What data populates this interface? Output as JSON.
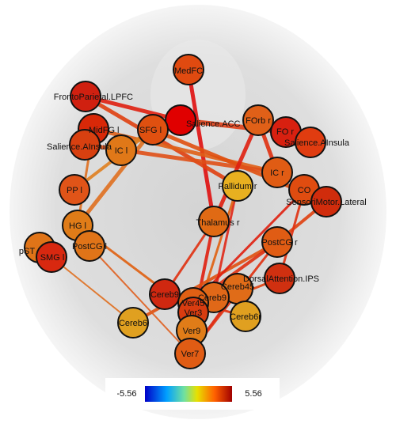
{
  "nodes": [
    {
      "label": "MedFC"
    },
    {
      "label": "FrontoParietal.LPFC"
    },
    {
      "label": "Salience.ACC"
    },
    {
      "label": "MidFG l"
    },
    {
      "label": "SFG l"
    },
    {
      "label": "Salience.AInsula"
    },
    {
      "label": "FOrb r"
    },
    {
      "label": "FO r"
    },
    {
      "label": "Salience.AInsula"
    },
    {
      "label": "IC l"
    },
    {
      "label": "IC r"
    },
    {
      "label": "PP l"
    },
    {
      "label": "Pallidum r"
    },
    {
      "label": "CO"
    },
    {
      "label": "SensoriMotor.Lateral"
    },
    {
      "label": "Thalamus r"
    },
    {
      "label": "HG l"
    },
    {
      "label": "PostCG l"
    },
    {
      "label": "pST"
    },
    {
      "label": "SMG l"
    },
    {
      "label": "PostCG r"
    },
    {
      "label": "DorsalAttention.IPS"
    },
    {
      "label": "Cereb9"
    },
    {
      "label": "Cereb45"
    },
    {
      "label": "Cereb9"
    },
    {
      "label": "Ver45"
    },
    {
      "label": "Ver3"
    },
    {
      "label": "Cereb6"
    },
    {
      "label": "Cereb6r"
    },
    {
      "label": "Ver9"
    },
    {
      "label": "Ver7"
    }
  ],
  "colorbar": {
    "min": -5.56,
    "max": 5.56
  }
}
